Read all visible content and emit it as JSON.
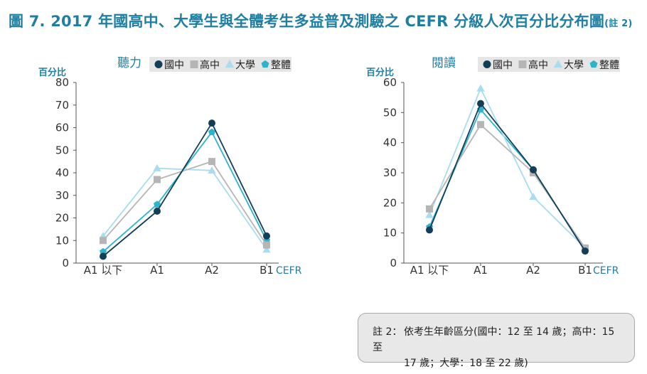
{
  "figure": {
    "title": "圖 7. 2017 年國高中、大學生與全體考生多益普及測驗之 CEFR 分級人次百分比分布圖",
    "title_ref": "(註 2)",
    "note_label": "註 2：",
    "note_line1": "依考生年齡區分(國中：12 至 14 歲；高中：15 至",
    "note_line2": "17 歲；大學：18 至 22 歲)"
  },
  "colors": {
    "國中": "#123f57",
    "高中": "#b5b5b5",
    "大學": "#a9dcef",
    "整體": "#2fb3cc"
  },
  "legend_markers": {
    "國中": "circle",
    "高中": "square",
    "大學": "triangle",
    "整體": "pentagon"
  },
  "chart_data": [
    {
      "type": "line",
      "title": "聽力",
      "ylabel": "百分比",
      "xlabel": "CEFR",
      "categories": [
        "A1 以下",
        "A1",
        "A2",
        "B1"
      ],
      "y_ticks": [
        0,
        10,
        20,
        30,
        40,
        50,
        60,
        70,
        80
      ],
      "ylim": [
        0,
        80
      ],
      "grid": false,
      "legend_position": "top",
      "series": [
        {
          "name": "國中",
          "values": [
            3,
            23,
            62,
            12
          ]
        },
        {
          "name": "高中",
          "values": [
            10,
            37,
            45,
            8
          ]
        },
        {
          "name": "大學",
          "values": [
            12,
            42,
            41,
            6
          ]
        },
        {
          "name": "整體",
          "values": [
            5,
            26,
            58,
            10
          ]
        }
      ]
    },
    {
      "type": "line",
      "title": "閱讀",
      "ylabel": "百分比",
      "xlabel": "CEFR",
      "categories": [
        "A1 以下",
        "A1",
        "A2",
        "B1"
      ],
      "y_ticks": [
        0,
        10,
        20,
        30,
        40,
        50,
        60
      ],
      "ylim": [
        0,
        60
      ],
      "grid": false,
      "legend_position": "top",
      "series": [
        {
          "name": "國中",
          "values": [
            11,
            53,
            31,
            4
          ]
        },
        {
          "name": "高中",
          "values": [
            18,
            46,
            30,
            5
          ]
        },
        {
          "name": "大學",
          "values": [
            16,
            58,
            22,
            5
          ]
        },
        {
          "name": "整體",
          "values": [
            12,
            51,
            31,
            4
          ]
        }
      ]
    }
  ]
}
